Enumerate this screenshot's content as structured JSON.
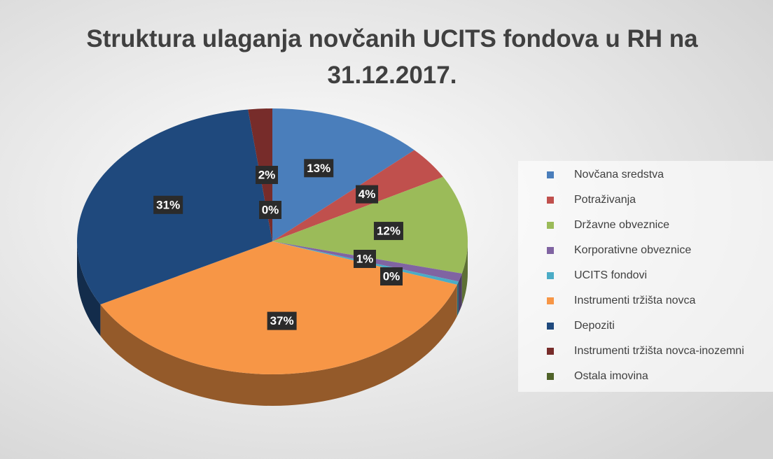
{
  "chart_data": {
    "type": "pie",
    "title": "Struktura ulaganja novčanih UCITS fondova u RH na 31.12.2017.",
    "categories": [
      "Novčana sredstva",
      "Potraživanja",
      "Državne obveznice",
      "Korporativne obveznice",
      "UCITS fondovi",
      "Instrumenti tržišta novca",
      "Depoziti",
      "Instrumenti tržišta novca-inozemni",
      "Ostala imovina"
    ],
    "values": [
      13,
      4,
      12,
      1,
      0.4,
      37,
      31,
      2,
      0
    ],
    "value_labels": [
      "13%",
      "4%",
      "12%",
      "1%",
      "0%",
      "37%",
      "31%",
      "2%",
      "0%"
    ],
    "colors": [
      "#4a7ebb",
      "#c0504d",
      "#9bbb59",
      "#8064a2",
      "#4bacc6",
      "#f79646",
      "#1f497d",
      "#772c2a",
      "#4f6228"
    ],
    "legend": "right"
  }
}
